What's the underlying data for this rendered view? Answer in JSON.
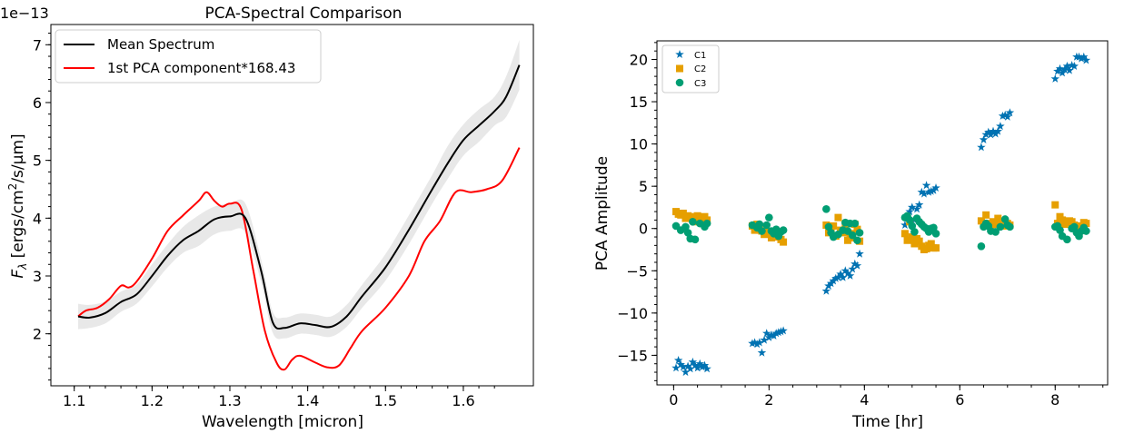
{
  "chart_data": [
    {
      "type": "line",
      "title": "PCA-Spectral Comparison",
      "xlabel": "Wavelength [micron]",
      "ylabel_main": "F",
      "ylabel_sub": "λ",
      "ylabel_rest_a": " [ergs/cm",
      "ylabel_sup": "2",
      "ylabel_rest_b": "/s/μm]",
      "offset_text": "1e−13",
      "xlim": [
        1.07,
        1.69
      ],
      "ylim": [
        1.1,
        7.35
      ],
      "xticks": [
        1.1,
        1.2,
        1.3,
        1.4,
        1.5,
        1.6
      ],
      "xtick_labels": [
        "1.1",
        "1.2",
        "1.3",
        "1.4",
        "1.5",
        "1.6"
      ],
      "yticks": [
        2,
        3,
        4,
        5,
        6,
        7
      ],
      "ytick_labels": [
        "2",
        "3",
        "4",
        "5",
        "6",
        "7"
      ],
      "legend_position": "top-left",
      "series": [
        {
          "name": "Mean Spectrum",
          "color": "#000000",
          "x": [
            1.105,
            1.12,
            1.14,
            1.16,
            1.18,
            1.2,
            1.22,
            1.24,
            1.26,
            1.28,
            1.3,
            1.32,
            1.34,
            1.355,
            1.37,
            1.39,
            1.41,
            1.43,
            1.45,
            1.47,
            1.5,
            1.53,
            1.56,
            1.58,
            1.6,
            1.62,
            1.64,
            1.655,
            1.672
          ],
          "y": [
            2.3,
            2.28,
            2.36,
            2.55,
            2.68,
            3.0,
            3.35,
            3.62,
            3.78,
            3.98,
            4.03,
            4.0,
            3.1,
            2.2,
            2.1,
            2.18,
            2.15,
            2.12,
            2.3,
            2.65,
            3.15,
            3.8,
            4.5,
            4.95,
            5.35,
            5.6,
            5.85,
            6.1,
            6.65
          ]
        },
        {
          "name": "1st PCA component*168.43",
          "color": "#ff0000",
          "x": [
            1.105,
            1.115,
            1.13,
            1.145,
            1.16,
            1.17,
            1.18,
            1.2,
            1.22,
            1.24,
            1.26,
            1.27,
            1.28,
            1.29,
            1.3,
            1.315,
            1.33,
            1.345,
            1.36,
            1.37,
            1.38,
            1.39,
            1.41,
            1.425,
            1.44,
            1.455,
            1.47,
            1.5,
            1.53,
            1.55,
            1.57,
            1.59,
            1.61,
            1.63,
            1.65,
            1.672
          ],
          "y": [
            2.3,
            2.4,
            2.45,
            2.6,
            2.83,
            2.8,
            2.9,
            3.3,
            3.78,
            4.05,
            4.3,
            4.45,
            4.3,
            4.2,
            4.25,
            4.15,
            3.1,
            2.05,
            1.5,
            1.38,
            1.55,
            1.62,
            1.5,
            1.42,
            1.45,
            1.75,
            2.05,
            2.45,
            3.0,
            3.6,
            3.95,
            4.45,
            4.45,
            4.5,
            4.65,
            5.22
          ]
        }
      ],
      "band": {
        "color": "#d9d9d9",
        "x": [
          1.105,
          1.12,
          1.14,
          1.16,
          1.18,
          1.2,
          1.22,
          1.24,
          1.26,
          1.28,
          1.3,
          1.32,
          1.34,
          1.355,
          1.37,
          1.39,
          1.41,
          1.43,
          1.45,
          1.47,
          1.5,
          1.53,
          1.56,
          1.58,
          1.6,
          1.62,
          1.64,
          1.655,
          1.672
        ],
        "upper": [
          2.52,
          2.5,
          2.56,
          2.73,
          2.85,
          3.2,
          3.55,
          3.85,
          4.05,
          4.2,
          4.25,
          4.25,
          3.3,
          2.38,
          2.28,
          2.35,
          2.33,
          2.3,
          2.5,
          2.85,
          3.38,
          4.05,
          4.75,
          5.25,
          5.62,
          5.88,
          6.1,
          6.45,
          7.08
        ],
        "lower": [
          2.08,
          2.1,
          2.18,
          2.38,
          2.52,
          2.82,
          3.15,
          3.4,
          3.52,
          3.72,
          3.78,
          3.75,
          2.9,
          2.02,
          1.92,
          2.0,
          1.98,
          1.95,
          2.12,
          2.45,
          2.92,
          3.55,
          4.25,
          4.68,
          5.08,
          5.32,
          5.6,
          5.75,
          6.22
        ]
      }
    },
    {
      "type": "scatter",
      "title": "",
      "xlabel": "Time [hr]",
      "ylabel": "PCA Amplitude",
      "xlim": [
        -0.35,
        9.1
      ],
      "ylim": [
        -18.5,
        22.2
      ],
      "xticks": [
        0,
        2,
        4,
        6,
        8
      ],
      "xtick_labels": [
        "0",
        "2",
        "4",
        "6",
        "8"
      ],
      "yticks": [
        -15,
        -10,
        -5,
        0,
        5,
        10,
        15,
        20
      ],
      "ytick_labels": [
        "−15",
        "−10",
        "−5",
        "0",
        "5",
        "10",
        "15",
        "20"
      ],
      "legend_position": "top-left",
      "series": [
        {
          "name": "C1",
          "marker": "star",
          "color": "#0072b2",
          "x": [
            0.05,
            0.1,
            0.15,
            0.2,
            0.25,
            0.3,
            0.35,
            0.4,
            0.45,
            0.5,
            0.55,
            0.6,
            0.65,
            0.7,
            1.65,
            1.7,
            1.75,
            1.8,
            1.85,
            1.9,
            1.95,
            2.0,
            2.05,
            2.1,
            2.15,
            2.2,
            2.25,
            2.3,
            3.2,
            3.25,
            3.3,
            3.35,
            3.4,
            3.45,
            3.5,
            3.55,
            3.6,
            3.65,
            3.7,
            3.75,
            3.8,
            3.85,
            3.9,
            4.85,
            4.9,
            4.95,
            5.0,
            5.05,
            5.1,
            5.15,
            5.2,
            5.25,
            5.3,
            5.35,
            5.4,
            5.45,
            5.5,
            6.45,
            6.5,
            6.55,
            6.6,
            6.65,
            6.7,
            6.75,
            6.8,
            6.85,
            6.9,
            6.95,
            7.0,
            7.05,
            8.0,
            8.05,
            8.1,
            8.15,
            8.2,
            8.25,
            8.3,
            8.35,
            8.4,
            8.45,
            8.5,
            8.55,
            8.6,
            8.65
          ],
          "y": [
            -16.5,
            -15.6,
            -16.1,
            -16.4,
            -17.0,
            -16.3,
            -16.6,
            -15.8,
            -16.2,
            -16.5,
            -16.0,
            -16.4,
            -16.2,
            -16.6,
            -13.6,
            -13.5,
            -13.7,
            -13.5,
            -14.7,
            -13.2,
            -12.4,
            -12.9,
            -12.6,
            -12.7,
            -12.4,
            -12.3,
            -12.2,
            -12.1,
            -7.4,
            -6.8,
            -6.5,
            -6.2,
            -5.9,
            -5.8,
            -5.4,
            -5.8,
            -5.0,
            -5.3,
            -5.6,
            -4.8,
            -4.2,
            -4.4,
            -3.0,
            0.4,
            1.2,
            2.0,
            2.5,
            1.0,
            2.3,
            2.8,
            4.3,
            4.1,
            5.1,
            4.3,
            4.4,
            4.5,
            4.8,
            9.6,
            10.5,
            11.1,
            11.4,
            11.1,
            11.5,
            11.2,
            11.5,
            12.1,
            13.3,
            13.4,
            13.2,
            13.7,
            17.7,
            18.6,
            18.9,
            18.4,
            18.8,
            19.2,
            18.7,
            19.3,
            19.2,
            20.3,
            20.3,
            20.1,
            20.3,
            19.9
          ]
        },
        {
          "name": "C2",
          "marker": "square",
          "color": "#e69f00",
          "x": [
            0.05,
            0.1,
            0.15,
            0.2,
            0.25,
            0.3,
            0.35,
            0.4,
            0.45,
            0.5,
            0.55,
            0.6,
            0.65,
            0.7,
            1.65,
            1.7,
            1.75,
            1.8,
            1.85,
            1.9,
            1.95,
            2.0,
            2.05,
            2.1,
            2.15,
            2.2,
            2.25,
            2.3,
            3.2,
            3.25,
            3.3,
            3.35,
            3.4,
            3.45,
            3.5,
            3.55,
            3.6,
            3.65,
            3.7,
            3.75,
            3.8,
            3.85,
            3.9,
            4.85,
            4.9,
            4.95,
            5.0,
            5.05,
            5.1,
            5.15,
            5.2,
            5.25,
            5.3,
            5.35,
            5.4,
            5.45,
            5.5,
            6.45,
            6.5,
            6.55,
            6.6,
            6.65,
            6.7,
            6.75,
            6.8,
            6.85,
            6.9,
            6.95,
            7.0,
            7.05,
            8.0,
            8.05,
            8.1,
            8.15,
            8.2,
            8.25,
            8.3,
            8.35,
            8.4,
            8.45,
            8.5,
            8.55,
            8.6,
            8.65
          ],
          "y": [
            2.0,
            1.7,
            1.6,
            1.8,
            1.2,
            1.5,
            1.4,
            1.3,
            0.8,
            1.5,
            1.2,
            1.0,
            1.4,
            1.0,
            0.3,
            -0.2,
            0.5,
            0.2,
            -0.3,
            -0.7,
            -0.5,
            -0.4,
            -1.1,
            -0.8,
            -1.0,
            -0.6,
            -1.3,
            -1.6,
            0.4,
            -0.5,
            -0.2,
            0.3,
            -0.9,
            1.3,
            -0.2,
            -0.5,
            0.5,
            -1.4,
            -0.6,
            -1.1,
            0.5,
            -0.1,
            -1.5,
            -0.6,
            -1.4,
            0.8,
            -1.0,
            -1.8,
            -1.2,
            -1.5,
            -2.1,
            -2.5,
            -2.4,
            -2.0,
            -1.8,
            -2.3,
            -2.3,
            0.9,
            0.5,
            1.6,
            0.6,
            0.3,
            0.8,
            0.5,
            1.2,
            0.3,
            0.6,
            0.3,
            0.6,
            0.4,
            2.8,
            0.6,
            1.4,
            1.0,
            0.5,
            0.7,
            0.9,
            0.8,
            0.4,
            0.3,
            0.2,
            -0.2,
            0.7,
            0.6
          ]
        },
        {
          "name": "C3",
          "marker": "circle",
          "color": "#009e73",
          "x": [
            0.05,
            0.15,
            0.25,
            0.3,
            0.35,
            0.4,
            0.45,
            0.55,
            0.65,
            0.7,
            1.65,
            1.75,
            1.8,
            1.85,
            1.95,
            2.0,
            2.05,
            2.1,
            2.15,
            2.2,
            2.25,
            2.3,
            3.2,
            3.25,
            3.3,
            3.35,
            3.45,
            3.55,
            3.6,
            3.65,
            3.7,
            3.75,
            3.8,
            3.85,
            3.9,
            4.85,
            4.9,
            4.95,
            5.0,
            5.05,
            5.1,
            5.15,
            5.2,
            5.25,
            5.3,
            5.35,
            5.4,
            5.45,
            5.5,
            6.45,
            6.5,
            6.55,
            6.6,
            6.65,
            6.75,
            6.85,
            6.95,
            7.0,
            7.05,
            8.0,
            8.05,
            8.1,
            8.15,
            8.25,
            8.35,
            8.4,
            8.45,
            8.5,
            8.55,
            8.6,
            8.65
          ],
          "y": [
            0.3,
            -0.2,
            0.2,
            -0.5,
            -1.2,
            0.8,
            -1.3,
            0.6,
            0.2,
            0.6,
            0.4,
            0.1,
            0.5,
            -0.3,
            0.4,
            1.3,
            -0.3,
            -0.6,
            -0.1,
            -0.9,
            -0.4,
            -0.2,
            2.3,
            0.2,
            -0.5,
            -1.0,
            -0.7,
            -0.2,
            0.7,
            -0.3,
            0.6,
            -0.8,
            0.6,
            -1.4,
            -0.5,
            1.3,
            1.5,
            1.0,
            0.3,
            -0.4,
            1.2,
            0.8,
            0.5,
            0.2,
            0.0,
            -0.4,
            0.0,
            0.1,
            -0.6,
            -2.1,
            0.2,
            0.6,
            0.3,
            -0.3,
            -0.4,
            0.2,
            1.1,
            0.4,
            0.2,
            0.2,
            0.3,
            -0.2,
            -0.9,
            -1.3,
            0.0,
            0.2,
            -0.5,
            -0.9,
            -0.3,
            0.1,
            -0.3
          ]
        }
      ]
    }
  ]
}
